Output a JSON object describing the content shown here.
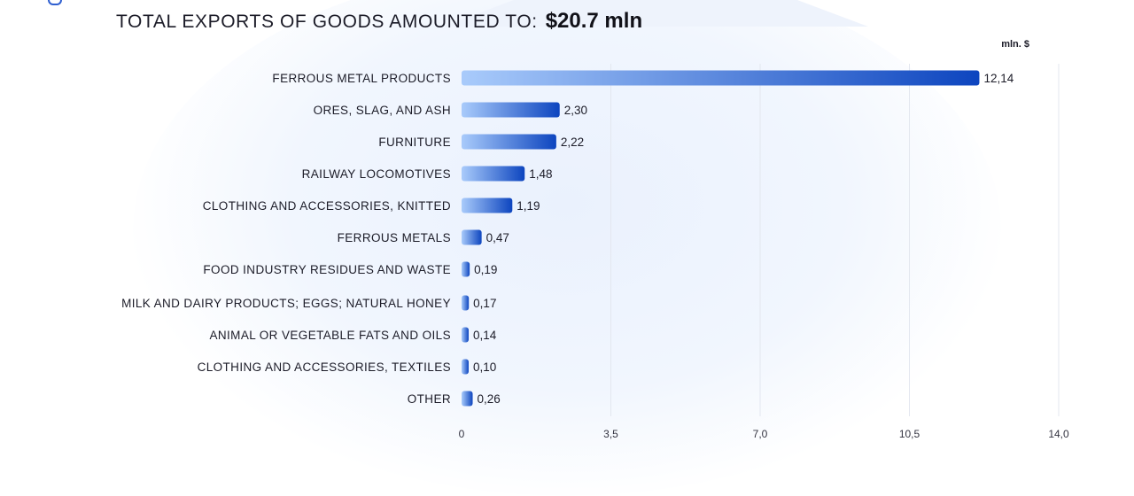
{
  "header": {
    "title_text": "TOTAL EXPORTS OF GOODS AMOUNTED TO:",
    "title_value": "$20.7 mln"
  },
  "chart_data": {
    "type": "bar",
    "orientation": "horizontal",
    "unit": "mln. $",
    "categories": [
      "FERROUS METAL PRODUCTS",
      "ORES, SLAG, AND ASH",
      "FURNITURE",
      "RAILWAY LOCOMOTIVES",
      "CLOTHING AND ACCESSORIES, KNITTED",
      "FERROUS METALS",
      "FOOD INDUSTRY RESIDUES AND WASTE",
      "MILK AND DAIRY PRODUCTS; EGGS; NATURAL HONEY",
      "ANIMAL OR VEGETABLE FATS AND OILS",
      "CLOTHING AND ACCESSORIES, TEXTILES",
      "OTHER"
    ],
    "values": [
      12.14,
      2.3,
      2.22,
      1.48,
      1.19,
      0.47,
      0.19,
      0.17,
      0.14,
      0.1,
      0.26
    ],
    "value_labels": [
      "12,14",
      "2,30",
      "2,22",
      "1,48",
      "1,19",
      "0,47",
      "0,19",
      "0,17",
      "0,14",
      "0,10",
      "0,26"
    ],
    "x_ticks": [
      0,
      3.5,
      7,
      10.5,
      14
    ],
    "x_tick_labels": [
      "0",
      "3,5",
      "7,0",
      "10,5",
      "14,0"
    ],
    "xlim": [
      0,
      14
    ],
    "grid": true,
    "colors": {
      "bar_start": "#a9cbfb",
      "bar_end": "#0d45bf",
      "grid": "#e3e7ef"
    }
  }
}
